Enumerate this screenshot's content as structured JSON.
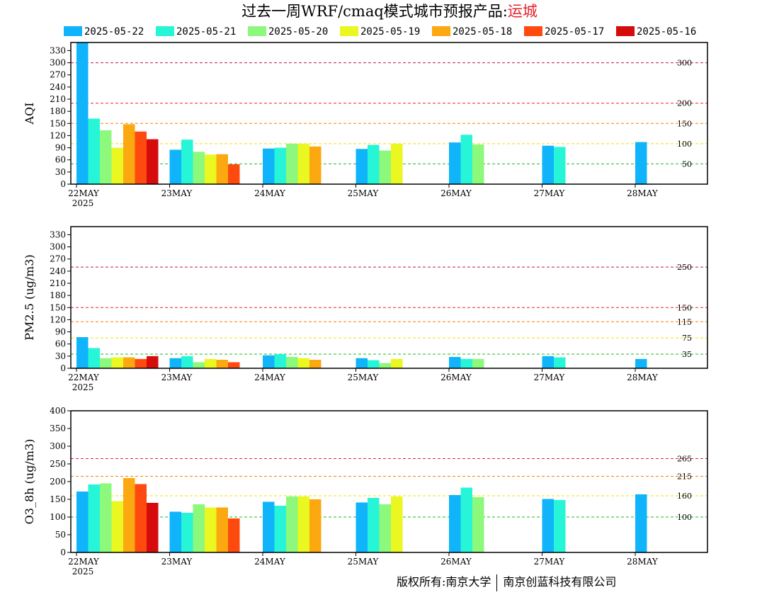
{
  "title": {
    "prefix": "过去一周WRF/cmaq模式城市预报产品:",
    "city": "运城"
  },
  "footer": {
    "left": "版权所有:南京大学",
    "right": "南京创蓝科技有限公司"
  },
  "legend": [
    {
      "label": "2025-05-22",
      "color": "#10b4fa"
    },
    {
      "label": "2025-05-21",
      "color": "#27f5d8"
    },
    {
      "label": "2025-05-20",
      "color": "#8cf87c"
    },
    {
      "label": "2025-05-19",
      "color": "#eaf720"
    },
    {
      "label": "2025-05-18",
      "color": "#fca810"
    },
    {
      "label": "2025-05-17",
      "color": "#fe4a0e"
    },
    {
      "label": "2025-05-16",
      "color": "#d60b0b"
    }
  ],
  "chart_data": [
    {
      "type": "bar",
      "ylabel": "AQI",
      "ylim": [
        0,
        350
      ],
      "yticks": [
        0,
        30,
        60,
        90,
        120,
        150,
        180,
        210,
        240,
        270,
        300,
        330
      ],
      "categories": [
        "22MAY",
        "23MAY",
        "24MAY",
        "25MAY",
        "26MAY",
        "27MAY",
        "28MAY"
      ],
      "year_label": "2025",
      "thresholds": [
        {
          "value": 300,
          "label": "300",
          "color": "#c0185a"
        },
        {
          "value": 200,
          "label": "200",
          "color": "#e8203a"
        },
        {
          "value": 150,
          "label": "150",
          "color": "#ff7d00"
        },
        {
          "value": 100,
          "label": "100",
          "color": "#f0e000"
        },
        {
          "value": 50,
          "label": "50",
          "color": "#20b820"
        }
      ],
      "series": [
        {
          "name": "2025-05-22",
          "values": [
            350,
            85,
            88,
            87,
            103,
            95,
            104
          ]
        },
        {
          "name": "2025-05-21",
          "values": [
            162,
            110,
            90,
            97,
            122,
            92,
            null
          ]
        },
        {
          "name": "2025-05-20",
          "values": [
            133,
            80,
            100,
            83,
            98,
            null,
            null
          ]
        },
        {
          "name": "2025-05-19",
          "values": [
            90,
            73,
            100,
            100,
            null,
            null,
            null
          ]
        },
        {
          "name": "2025-05-18",
          "values": [
            148,
            74,
            93,
            null,
            null,
            null,
            null
          ]
        },
        {
          "name": "2025-05-17",
          "values": [
            130,
            49,
            null,
            null,
            null,
            null,
            null
          ]
        },
        {
          "name": "2025-05-16",
          "values": [
            111,
            null,
            null,
            null,
            null,
            null,
            null
          ]
        }
      ]
    },
    {
      "type": "bar",
      "ylabel": "PM2.5 (ug/m3)",
      "ylim": [
        0,
        350
      ],
      "yticks": [
        0,
        30,
        60,
        90,
        120,
        150,
        180,
        210,
        240,
        270,
        300,
        330
      ],
      "categories": [
        "22MAY",
        "23MAY",
        "24MAY",
        "25MAY",
        "26MAY",
        "27MAY",
        "28MAY"
      ],
      "year_label": "2025",
      "thresholds": [
        {
          "value": 250,
          "label": "250",
          "color": "#c0185a"
        },
        {
          "value": 150,
          "label": "150",
          "color": "#e8203a"
        },
        {
          "value": 115,
          "label": "115",
          "color": "#ff7d00"
        },
        {
          "value": 75,
          "label": "75",
          "color": "#f0e000"
        },
        {
          "value": 35,
          "label": "35",
          "color": "#20b820"
        }
      ],
      "series": [
        {
          "name": "2025-05-22",
          "values": [
            77,
            25,
            32,
            25,
            28,
            30,
            23
          ]
        },
        {
          "name": "2025-05-21",
          "values": [
            50,
            30,
            35,
            20,
            23,
            27,
            null
          ]
        },
        {
          "name": "2025-05-20",
          "values": [
            25,
            15,
            28,
            13,
            23,
            null,
            null
          ]
        },
        {
          "name": "2025-05-19",
          "values": [
            27,
            23,
            25,
            23,
            null,
            null,
            null
          ]
        },
        {
          "name": "2025-05-18",
          "values": [
            27,
            21,
            21,
            null,
            null,
            null,
            null
          ]
        },
        {
          "name": "2025-05-17",
          "values": [
            23,
            15,
            null,
            null,
            null,
            null,
            null
          ]
        },
        {
          "name": "2025-05-16",
          "values": [
            30,
            null,
            null,
            null,
            null,
            null,
            null
          ]
        }
      ]
    },
    {
      "type": "bar",
      "ylabel": "O3_8h (ug/m3)",
      "ylim": [
        0,
        400
      ],
      "yticks": [
        0,
        50,
        100,
        150,
        200,
        250,
        300,
        350,
        400
      ],
      "categories": [
        "22MAY",
        "23MAY",
        "24MAY",
        "25MAY",
        "26MAY",
        "27MAY",
        "28MAY"
      ],
      "year_label": "2025",
      "thresholds": [
        {
          "value": 265,
          "label": "265",
          "color": "#e8203a"
        },
        {
          "value": 215,
          "label": "215",
          "color": "#ff7d00"
        },
        {
          "value": 160,
          "label": "160",
          "color": "#f0e000"
        },
        {
          "value": 100,
          "label": "100",
          "color": "#20b820"
        }
      ],
      "series": [
        {
          "name": "2025-05-22",
          "values": [
            172,
            115,
            143,
            141,
            162,
            151,
            164
          ]
        },
        {
          "name": "2025-05-21",
          "values": [
            192,
            112,
            132,
            154,
            183,
            148,
            null
          ]
        },
        {
          "name": "2025-05-20",
          "values": [
            195,
            136,
            158,
            136,
            156,
            null,
            null
          ]
        },
        {
          "name": "2025-05-19",
          "values": [
            145,
            127,
            158,
            158,
            null,
            null,
            null
          ]
        },
        {
          "name": "2025-05-18",
          "values": [
            210,
            127,
            150,
            null,
            null,
            null,
            null
          ]
        },
        {
          "name": "2025-05-17",
          "values": [
            193,
            96,
            null,
            null,
            null,
            null,
            null
          ]
        },
        {
          "name": "2025-05-16",
          "values": [
            140,
            null,
            null,
            null,
            null,
            null,
            null
          ]
        }
      ]
    }
  ]
}
